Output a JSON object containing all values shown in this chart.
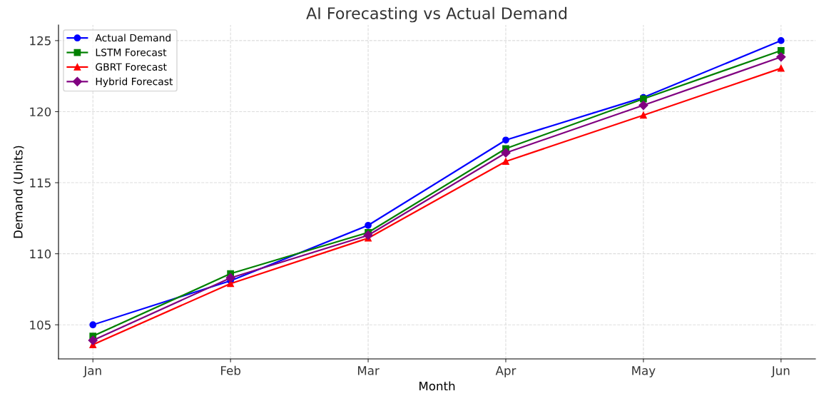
{
  "chart_data": {
    "type": "line",
    "title": "AI Forecasting vs Actual Demand",
    "xlabel": "Month",
    "ylabel": "Demand (Units)",
    "categories": [
      "Jan",
      "Feb",
      "Mar",
      "Apr",
      "May",
      "Jun"
    ],
    "series": [
      {
        "name": "Actual Demand",
        "color": "#0000ff",
        "marker": "circle",
        "values": [
          105,
          108.1,
          112,
          118,
          121,
          125
        ]
      },
      {
        "name": "LSTM Forecast",
        "color": "#008000",
        "marker": "square",
        "values": [
          104.2,
          108.6,
          111.5,
          117.4,
          120.9,
          124.3
        ]
      },
      {
        "name": "GBRT Forecast",
        "color": "#ff0000",
        "marker": "triangle",
        "values": [
          103.6,
          107.9,
          111.1,
          116.5,
          119.75,
          123.05
        ]
      },
      {
        "name": "Hybrid Forecast",
        "color": "#800080",
        "marker": "diamond",
        "values": [
          103.9,
          108.3,
          111.3,
          117.1,
          120.45,
          123.85
        ]
      }
    ],
    "ylim": [
      102.6,
      126.1
    ],
    "yticks": [
      105,
      110,
      115,
      120,
      125
    ],
    "grid": true,
    "legend": "top left",
    "line_style": "solid"
  }
}
